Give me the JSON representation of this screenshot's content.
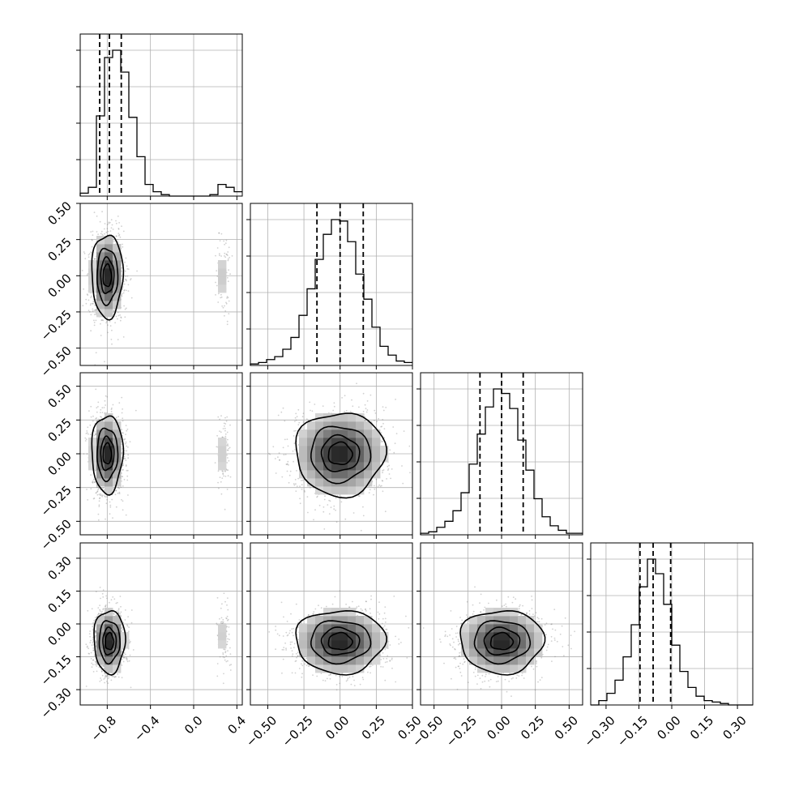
{
  "chart_data": {
    "type": "corner",
    "n_params": 4,
    "quantiles": [
      0.16,
      0.5,
      0.84
    ],
    "axes": [
      {
        "lim": [
          -1.05,
          0.45
        ],
        "ticks": [
          -0.8,
          -0.4,
          0.0,
          0.4
        ],
        "tick_labels": [
          "−0.8",
          "−0.4",
          "0.0",
          "0.4"
        ]
      },
      {
        "lim": [
          -0.62,
          0.5
        ],
        "ticks": [
          -0.5,
          -0.25,
          0.0,
          0.25,
          0.5
        ],
        "tick_labels": [
          "−0.50",
          "−0.25",
          "0.00",
          "0.25",
          "0.50"
        ]
      },
      {
        "lim": [
          -0.6,
          0.6
        ],
        "ticks": [
          -0.5,
          -0.25,
          0.0,
          0.25,
          0.5
        ],
        "tick_labels": [
          "−0.50",
          "−0.25",
          "0.00",
          "0.25",
          "0.50"
        ]
      },
      {
        "lim": [
          -0.37,
          0.37
        ],
        "ticks": [
          -0.3,
          -0.15,
          0.0,
          0.15,
          0.3
        ],
        "tick_labels": [
          "−0.30",
          "−0.15",
          "0.00",
          "0.15",
          "0.30"
        ]
      }
    ],
    "marginals": [
      {
        "param": 0,
        "bin_edges": [
          -1.05,
          -0.975,
          -0.9,
          -0.825,
          -0.75,
          -0.675,
          -0.6,
          -0.525,
          -0.45,
          -0.375,
          -0.3,
          -0.225,
          -0.15,
          -0.075,
          0.0,
          0.075,
          0.15,
          0.225,
          0.3,
          0.375,
          0.45
        ],
        "counts": [
          2,
          6,
          55,
          95,
          100,
          85,
          54,
          27,
          8,
          3,
          1,
          0,
          0,
          0,
          0,
          0,
          1,
          8,
          6,
          3
        ],
        "quantile_values": [
          -0.87,
          -0.78,
          -0.67
        ]
      },
      {
        "param": 1,
        "bin_edges": [
          -0.62,
          -0.564,
          -0.508,
          -0.452,
          -0.396,
          -0.34,
          -0.284,
          -0.228,
          -0.172,
          -0.116,
          -0.06,
          -0.004,
          0.052,
          0.108,
          0.164,
          0.22,
          0.276,
          0.332,
          0.388,
          0.444,
          0.5
        ],
        "counts": [
          1,
          2,
          4,
          6,
          11,
          19,
          34,
          52,
          72,
          89,
          99,
          98,
          84,
          62,
          45,
          26,
          13,
          7,
          3,
          2
        ],
        "quantile_values": [
          -0.16,
          0.0,
          0.16
        ]
      },
      {
        "param": 2,
        "bin_edges": [
          -0.6,
          -0.54,
          -0.48,
          -0.42,
          -0.36,
          -0.3,
          -0.24,
          -0.18,
          -0.12,
          -0.06,
          0.0,
          0.06,
          0.12,
          0.18,
          0.24,
          0.3,
          0.36,
          0.42,
          0.48,
          0.54,
          0.6
        ],
        "counts": [
          1,
          2,
          5,
          9,
          16,
          28,
          47,
          67,
          85,
          97,
          94,
          84,
          63,
          43,
          24,
          12,
          6,
          3,
          1,
          1
        ],
        "quantile_values": [
          -0.16,
          0.0,
          0.16
        ]
      },
      {
        "param": 3,
        "bin_edges": [
          -0.37,
          -0.333,
          -0.296,
          -0.259,
          -0.222,
          -0.185,
          -0.148,
          -0.111,
          -0.074,
          -0.037,
          0.0,
          0.037,
          0.074,
          0.111,
          0.148,
          0.185,
          0.222,
          0.259,
          0.296,
          0.333,
          0.37
        ],
        "counts": [
          0,
          3,
          8,
          17,
          33,
          55,
          81,
          100,
          90,
          69,
          41,
          23,
          12,
          6,
          3,
          2,
          1,
          0,
          0,
          0
        ],
        "quantile_values": [
          -0.145,
          -0.085,
          -0.005
        ]
      }
    ],
    "joints": [
      {
        "x_param": 0,
        "y_param": 1,
        "cluster_means": [
          [
            -0.8,
            0.0
          ],
          [
            0.28,
            0.0
          ]
        ],
        "cluster_sds": [
          [
            0.07,
            0.14
          ],
          [
            0.03,
            0.13
          ]
        ],
        "cluster_weights": [
          0.93,
          0.07
        ],
        "contour_levels": [
          0.12,
          0.39,
          0.68,
          0.86
        ]
      },
      {
        "x_param": 0,
        "y_param": 2,
        "cluster_means": [
          [
            -0.8,
            0.0
          ],
          [
            0.28,
            0.0
          ]
        ],
        "cluster_sds": [
          [
            0.07,
            0.14
          ],
          [
            0.03,
            0.14
          ]
        ],
        "cluster_weights": [
          0.93,
          0.07
        ],
        "contour_levels": [
          0.12,
          0.39,
          0.68,
          0.86
        ]
      },
      {
        "x_param": 1,
        "y_param": 2,
        "cluster_means": [
          [
            0.0,
            0.0
          ]
        ],
        "cluster_sds": [
          [
            0.15,
            0.15
          ]
        ],
        "cluster_weights": [
          1.0
        ],
        "contour_levels": [
          0.12,
          0.39,
          0.68,
          0.86
        ]
      },
      {
        "x_param": 0,
        "y_param": 3,
        "cluster_means": [
          [
            -0.78,
            -0.08
          ],
          [
            0.28,
            -0.05
          ]
        ],
        "cluster_sds": [
          [
            0.07,
            0.07
          ],
          [
            0.03,
            0.07
          ]
        ],
        "cluster_weights": [
          0.93,
          0.07
        ],
        "contour_levels": [
          0.12,
          0.39,
          0.68,
          0.86
        ]
      },
      {
        "x_param": 1,
        "y_param": 3,
        "cluster_means": [
          [
            0.0,
            -0.08
          ]
        ],
        "cluster_sds": [
          [
            0.15,
            0.07
          ]
        ],
        "cluster_weights": [
          1.0
        ],
        "contour_levels": [
          0.12,
          0.39,
          0.68,
          0.86
        ]
      },
      {
        "x_param": 2,
        "y_param": 3,
        "cluster_means": [
          [
            0.0,
            -0.08
          ]
        ],
        "cluster_sds": [
          [
            0.15,
            0.07
          ]
        ],
        "cluster_weights": [
          1.0
        ],
        "contour_levels": [
          0.12,
          0.39,
          0.68,
          0.86
        ]
      }
    ],
    "grid": true,
    "title": "",
    "axis_labels": []
  }
}
